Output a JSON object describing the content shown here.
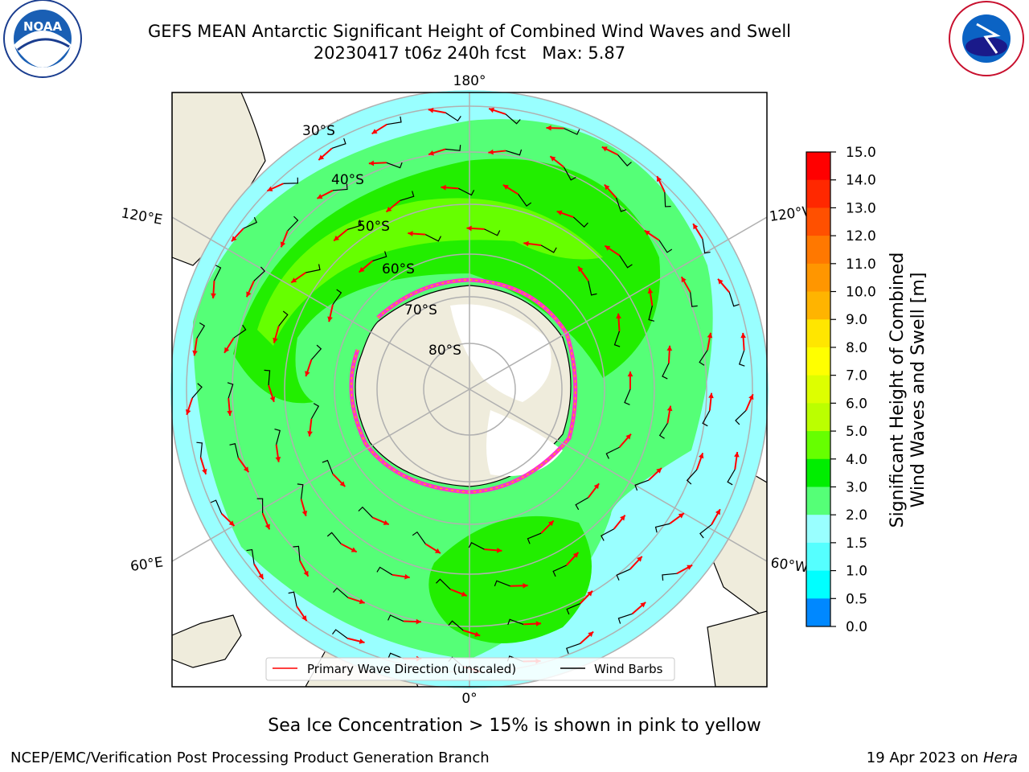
{
  "header": {
    "title_line1": "GEFS MEAN Antarctic Significant Height of Combined Wind Waves and Swell",
    "title_line2": "20230417 t06z 240h fcst   Max: 5.87",
    "left_logo_text": "NOAA",
    "left_logo_ring_text": "NATIONAL OCEANIC AND ATMOSPHERIC ADMINISTRATION · U.S. DEPARTMENT OF COMMERCE",
    "right_logo_ring_text": "NATIONAL WEATHER SERVICE"
  },
  "map": {
    "longitude_labels": {
      "top": "180°",
      "bottom": "0°",
      "upper_left": "120°E",
      "lower_left": "60°E",
      "upper_right": "120°W",
      "lower_right": "60°W"
    },
    "latitude_labels": [
      "30°S",
      "40°S",
      "50°S",
      "60°S",
      "70°S",
      "80°S"
    ],
    "legend": {
      "wave_direction": "Primary Wave Direction (unscaled)",
      "wind_barbs": "Wind Barbs"
    },
    "colors": {
      "land": "#efecdc",
      "ice": "#ffffff",
      "ocean_low": "#99ffff",
      "ocean_mid": "#55ff77",
      "ocean_high": "#22ee00",
      "ocean_higher": "#66ff00",
      "arrow": "#ff0000",
      "grid": "#b0b0b0"
    }
  },
  "colorbar": {
    "label": "Significant Height of Combined Wind Waves and Swell [m]",
    "label_line1": "Significant Height of Combined",
    "label_line2": "Wind Waves and Swell [m]",
    "ticks": [
      "15.0",
      "14.0",
      "13.0",
      "12.0",
      "11.0",
      "10.0",
      "9.0",
      "8.0",
      "7.0",
      "6.0",
      "5.0",
      "4.0",
      "3.0",
      "2.0",
      "1.5",
      "1.0",
      "0.5",
      "0.0"
    ],
    "segment_colors": [
      "#ff0000",
      "#ff2800",
      "#ff5000",
      "#ff7800",
      "#ff9600",
      "#ffb400",
      "#ffe600",
      "#ffff00",
      "#ddff00",
      "#bbff00",
      "#66ff00",
      "#00ee00",
      "#55ff77",
      "#99ffff",
      "#55ffff",
      "#00ffff",
      "#0088ff",
      "#0000ff"
    ]
  },
  "caption": "Sea Ice Concentration > 15% is shown in pink to yellow",
  "footer": {
    "left": "NCEP/EMC/Verification Post Processing Product Generation Branch",
    "right_date": "19 Apr 2023 on ",
    "right_host": "Hera"
  }
}
